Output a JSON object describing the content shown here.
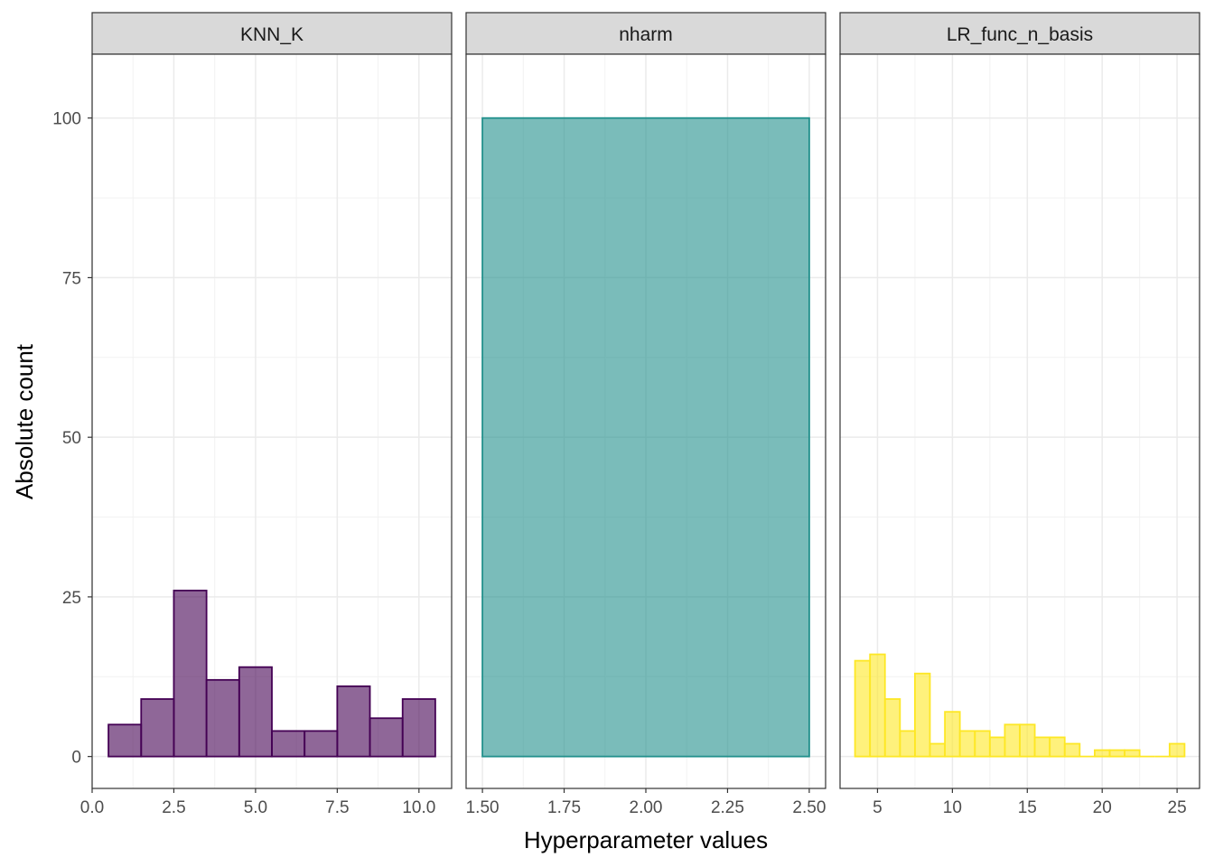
{
  "chart_data": {
    "type": "bar",
    "subtype": "faceted-histogram",
    "xlabel": "Hyperparameter values",
    "ylabel": "Absolute count",
    "ylim": [
      -5,
      110
    ],
    "yticks": [
      0,
      25,
      50,
      75,
      100
    ],
    "grid": true,
    "theme": "bw",
    "facets": [
      {
        "name": "KNN_K",
        "fill": "#440154",
        "stroke": "#440154",
        "xlim": [
          0,
          11
        ],
        "xticks": [
          0,
          2.5,
          5,
          7.5,
          10
        ],
        "xtick_labels": [
          "0.0",
          "2.5",
          "5.0",
          "7.5",
          "10.0"
        ],
        "bins": [
          {
            "x0": 0.5,
            "x1": 1.5,
            "count": 5
          },
          {
            "x0": 1.5,
            "x1": 2.5,
            "count": 9
          },
          {
            "x0": 2.5,
            "x1": 3.5,
            "count": 26
          },
          {
            "x0": 3.5,
            "x1": 4.5,
            "count": 12
          },
          {
            "x0": 4.5,
            "x1": 5.5,
            "count": 14
          },
          {
            "x0": 5.5,
            "x1": 6.5,
            "count": 4
          },
          {
            "x0": 6.5,
            "x1": 7.5,
            "count": 4
          },
          {
            "x0": 7.5,
            "x1": 8.5,
            "count": 11
          },
          {
            "x0": 8.5,
            "x1": 9.5,
            "count": 6
          },
          {
            "x0": 9.5,
            "x1": 10.5,
            "count": 9
          }
        ]
      },
      {
        "name": "nharm",
        "fill": "#21908C",
        "stroke": "#21908C",
        "xlim": [
          1.45,
          2.55
        ],
        "xticks": [
          1.5,
          1.75,
          2.0,
          2.25,
          2.5
        ],
        "xtick_labels": [
          "1.50",
          "1.75",
          "2.00",
          "2.25",
          "2.50"
        ],
        "bins": [
          {
            "x0": 1.5,
            "x1": 2.5,
            "count": 100
          }
        ]
      },
      {
        "name": "LR_func_n_basis",
        "fill": "#FDE725",
        "stroke": "#FDE725",
        "xlim": [
          2.5,
          26.5
        ],
        "xticks": [
          5,
          10,
          15,
          20,
          25
        ],
        "xtick_labels": [
          "5",
          "10",
          "15",
          "20",
          "25"
        ],
        "bins": [
          {
            "x0": 3.5,
            "x1": 4.5,
            "count": 15
          },
          {
            "x0": 4.5,
            "x1": 5.5,
            "count": 16
          },
          {
            "x0": 5.5,
            "x1": 6.5,
            "count": 9
          },
          {
            "x0": 6.5,
            "x1": 7.5,
            "count": 4
          },
          {
            "x0": 7.5,
            "x1": 8.5,
            "count": 13
          },
          {
            "x0": 8.5,
            "x1": 9.5,
            "count": 2
          },
          {
            "x0": 9.5,
            "x1": 10.5,
            "count": 7
          },
          {
            "x0": 10.5,
            "x1": 11.5,
            "count": 4
          },
          {
            "x0": 11.5,
            "x1": 12.5,
            "count": 4
          },
          {
            "x0": 12.5,
            "x1": 13.5,
            "count": 3
          },
          {
            "x0": 13.5,
            "x1": 14.5,
            "count": 5
          },
          {
            "x0": 14.5,
            "x1": 15.5,
            "count": 5
          },
          {
            "x0": 15.5,
            "x1": 16.5,
            "count": 3
          },
          {
            "x0": 16.5,
            "x1": 17.5,
            "count": 3
          },
          {
            "x0": 17.5,
            "x1": 18.5,
            "count": 2
          },
          {
            "x0": 18.5,
            "x1": 19.5,
            "count": 0
          },
          {
            "x0": 19.5,
            "x1": 20.5,
            "count": 1
          },
          {
            "x0": 20.5,
            "x1": 21.5,
            "count": 1
          },
          {
            "x0": 21.5,
            "x1": 22.5,
            "count": 1
          },
          {
            "x0": 22.5,
            "x1": 23.5,
            "count": 0
          },
          {
            "x0": 23.5,
            "x1": 24.5,
            "count": 0
          },
          {
            "x0": 24.5,
            "x1": 25.5,
            "count": 2
          }
        ]
      }
    ]
  }
}
